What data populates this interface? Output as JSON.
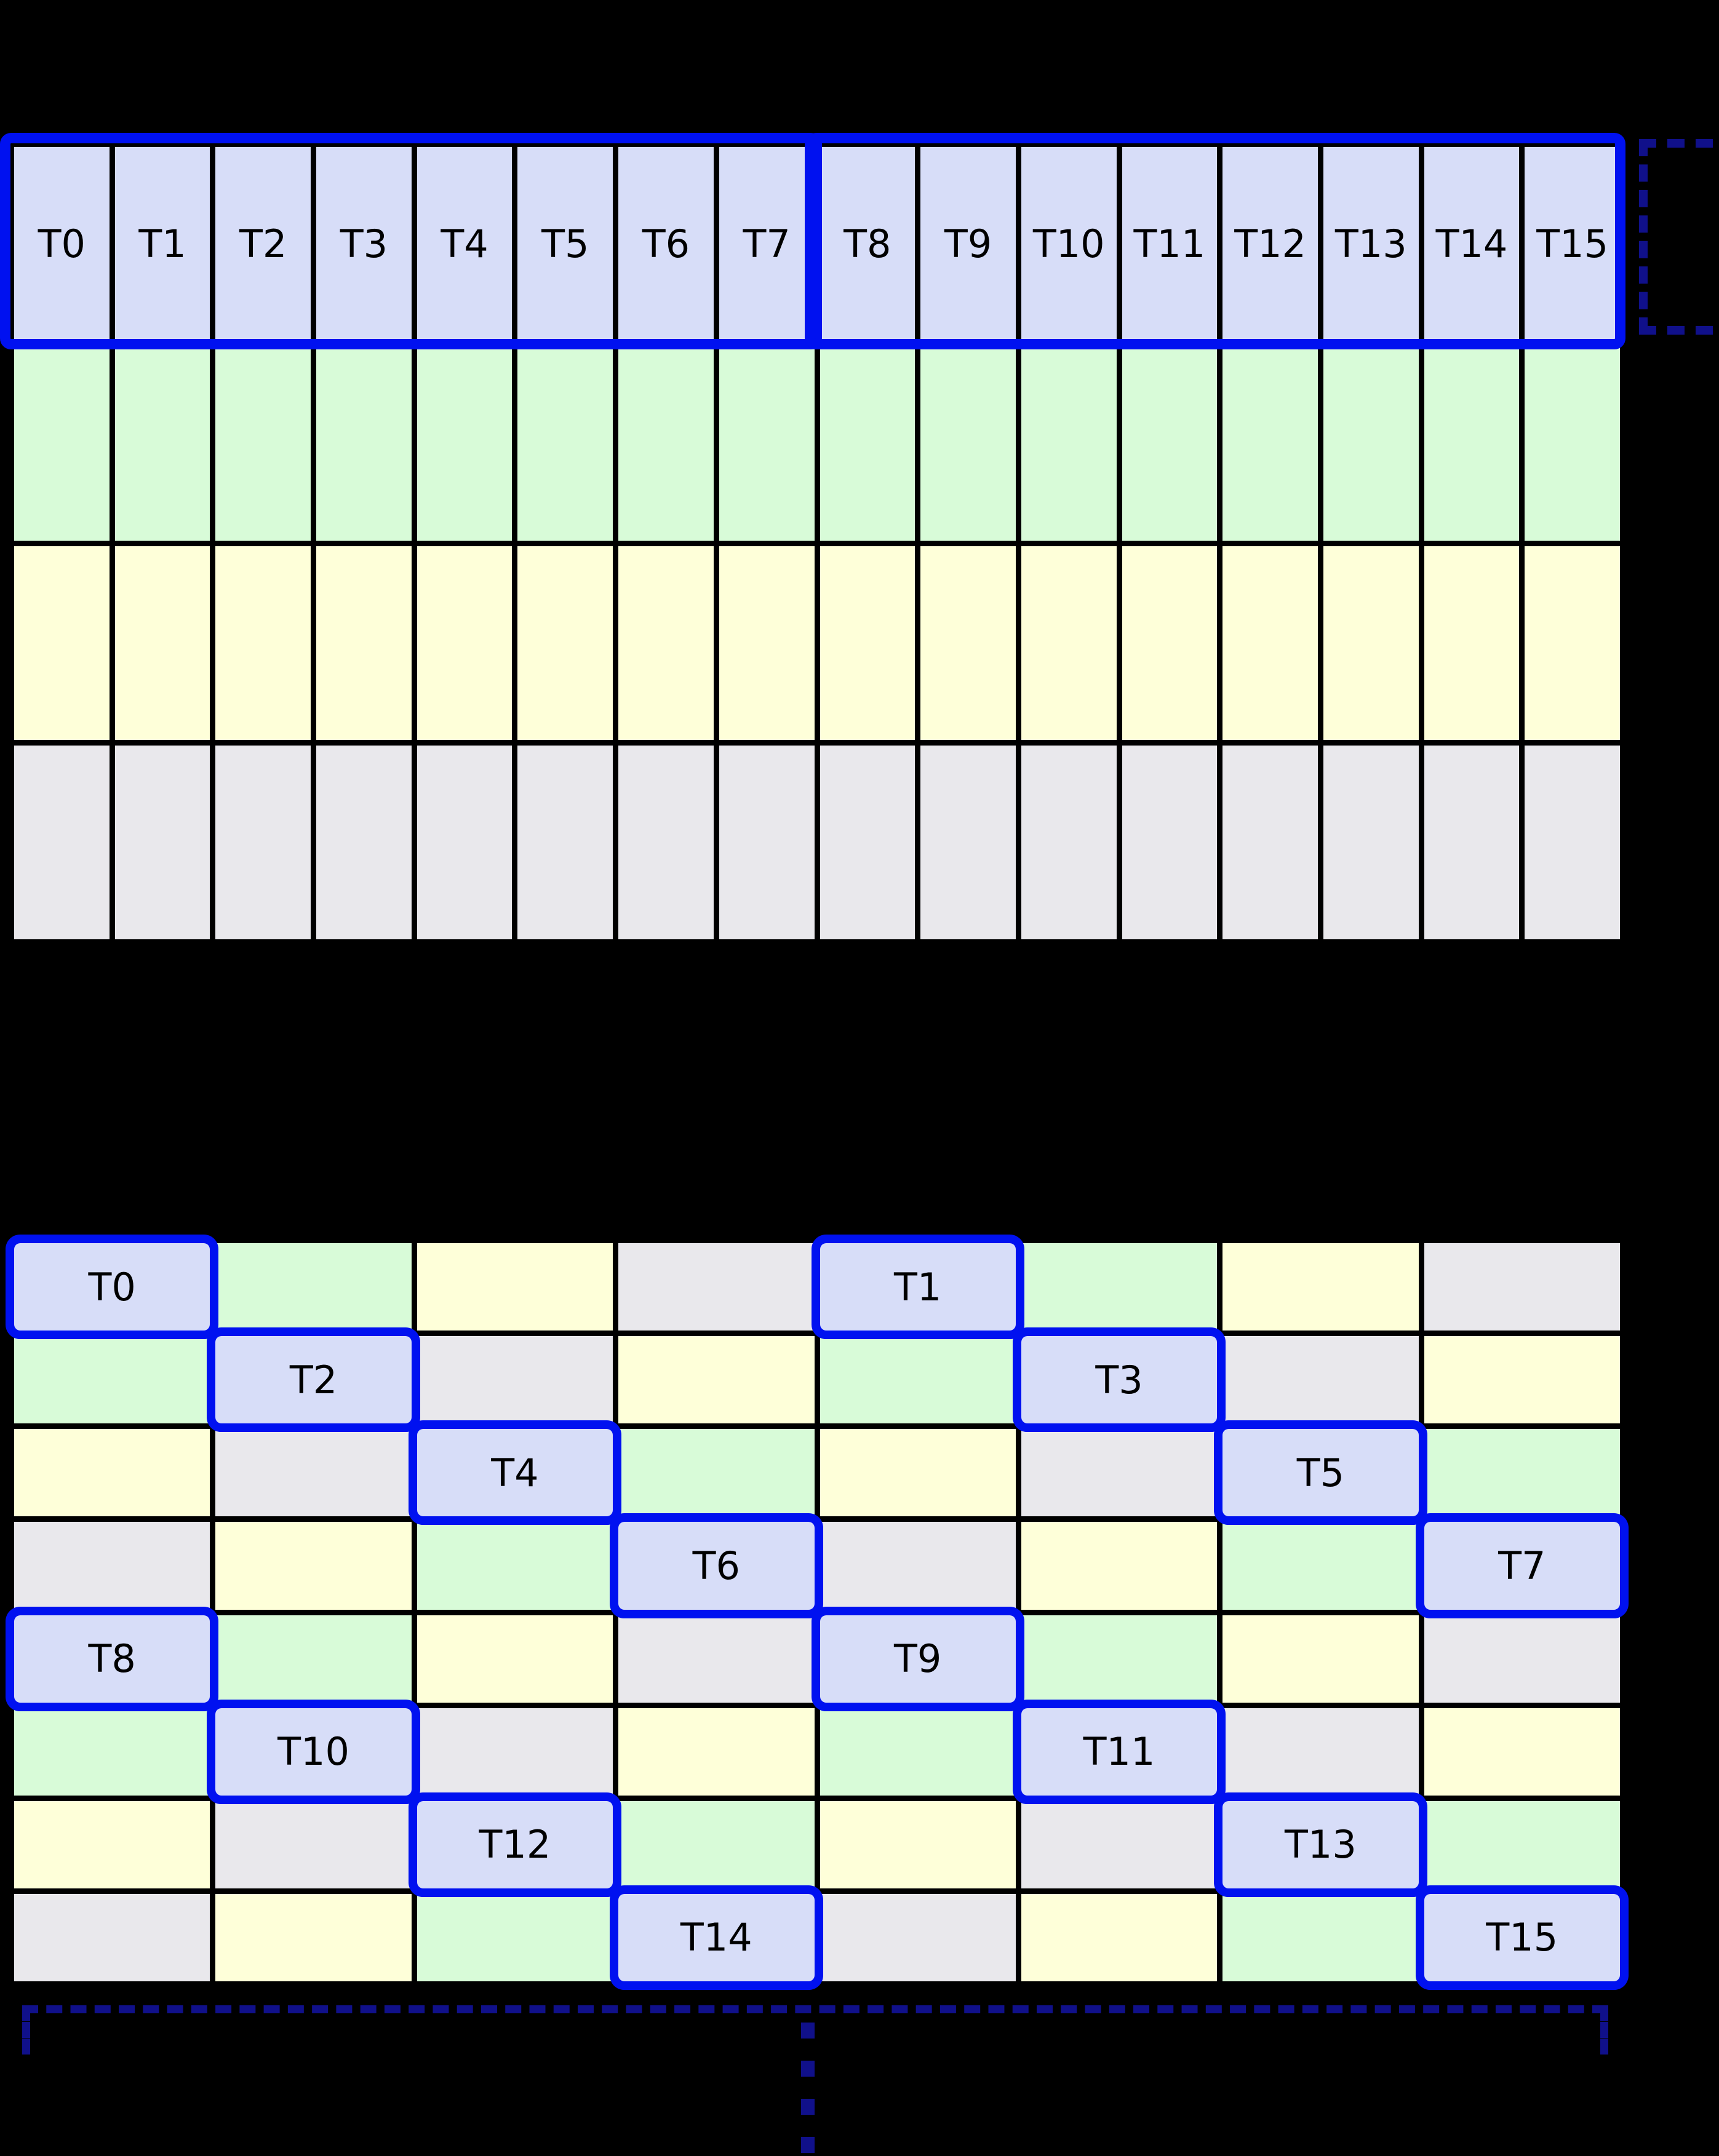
{
  "colors": {
    "background": "#000000",
    "grid_line": "#000000",
    "label_text": "#000000",
    "thread_cell": "#D7DDF8",
    "green_cell": "#D8FBD8",
    "yellow_cell": "#FEFFD9",
    "gray_cell": "#E9E8EC",
    "warp_outline": "#0011F0",
    "bracket": "#10108A"
  },
  "top_grid": {
    "columns": 16,
    "row_fills": [
      "thread",
      "green",
      "yellow",
      "gray"
    ],
    "thread_labels": [
      "T0",
      "T1",
      "T2",
      "T3",
      "T4",
      "T5",
      "T6",
      "T7",
      "T8",
      "T9",
      "T10",
      "T11",
      "T12",
      "T13",
      "T14",
      "T15"
    ],
    "warp_group_spans": [
      [
        0,
        7
      ],
      [
        8,
        15
      ]
    ]
  },
  "bottom_grid": {
    "columns": 8,
    "rows": [
      {
        "fills": [
          "thread",
          "green",
          "yellow",
          "gray",
          "thread",
          "green",
          "yellow",
          "gray"
        ],
        "labels": [
          "T0",
          "",
          "",
          "",
          "T1",
          "",
          "",
          ""
        ]
      },
      {
        "fills": [
          "green",
          "thread",
          "gray",
          "yellow",
          "green",
          "thread",
          "gray",
          "yellow"
        ],
        "labels": [
          "",
          "T2",
          "",
          "",
          "",
          "T3",
          "",
          ""
        ]
      },
      {
        "fills": [
          "yellow",
          "gray",
          "thread",
          "green",
          "yellow",
          "gray",
          "thread",
          "green"
        ],
        "labels": [
          "",
          "",
          "T4",
          "",
          "",
          "",
          "T5",
          ""
        ]
      },
      {
        "fills": [
          "gray",
          "yellow",
          "green",
          "thread",
          "gray",
          "yellow",
          "green",
          "thread"
        ],
        "labels": [
          "",
          "",
          "",
          "T6",
          "",
          "",
          "",
          "T7"
        ]
      },
      {
        "fills": [
          "thread",
          "green",
          "yellow",
          "gray",
          "thread",
          "green",
          "yellow",
          "gray"
        ],
        "labels": [
          "T8",
          "",
          "",
          "",
          "T9",
          "",
          "",
          ""
        ]
      },
      {
        "fills": [
          "green",
          "thread",
          "gray",
          "yellow",
          "green",
          "thread",
          "gray",
          "yellow"
        ],
        "labels": [
          "",
          "T10",
          "",
          "",
          "",
          "T11",
          "",
          ""
        ]
      },
      {
        "fills": [
          "yellow",
          "gray",
          "thread",
          "green",
          "yellow",
          "gray",
          "thread",
          "green"
        ],
        "labels": [
          "",
          "",
          "T12",
          "",
          "",
          "",
          "T13",
          ""
        ]
      },
      {
        "fills": [
          "gray",
          "yellow",
          "green",
          "thread",
          "gray",
          "yellow",
          "green",
          "thread"
        ],
        "labels": [
          "",
          "",
          "",
          "T14",
          "",
          "",
          "",
          "T15"
        ]
      }
    ]
  },
  "decorations": {
    "ellipsis_dot_count": 4
  }
}
